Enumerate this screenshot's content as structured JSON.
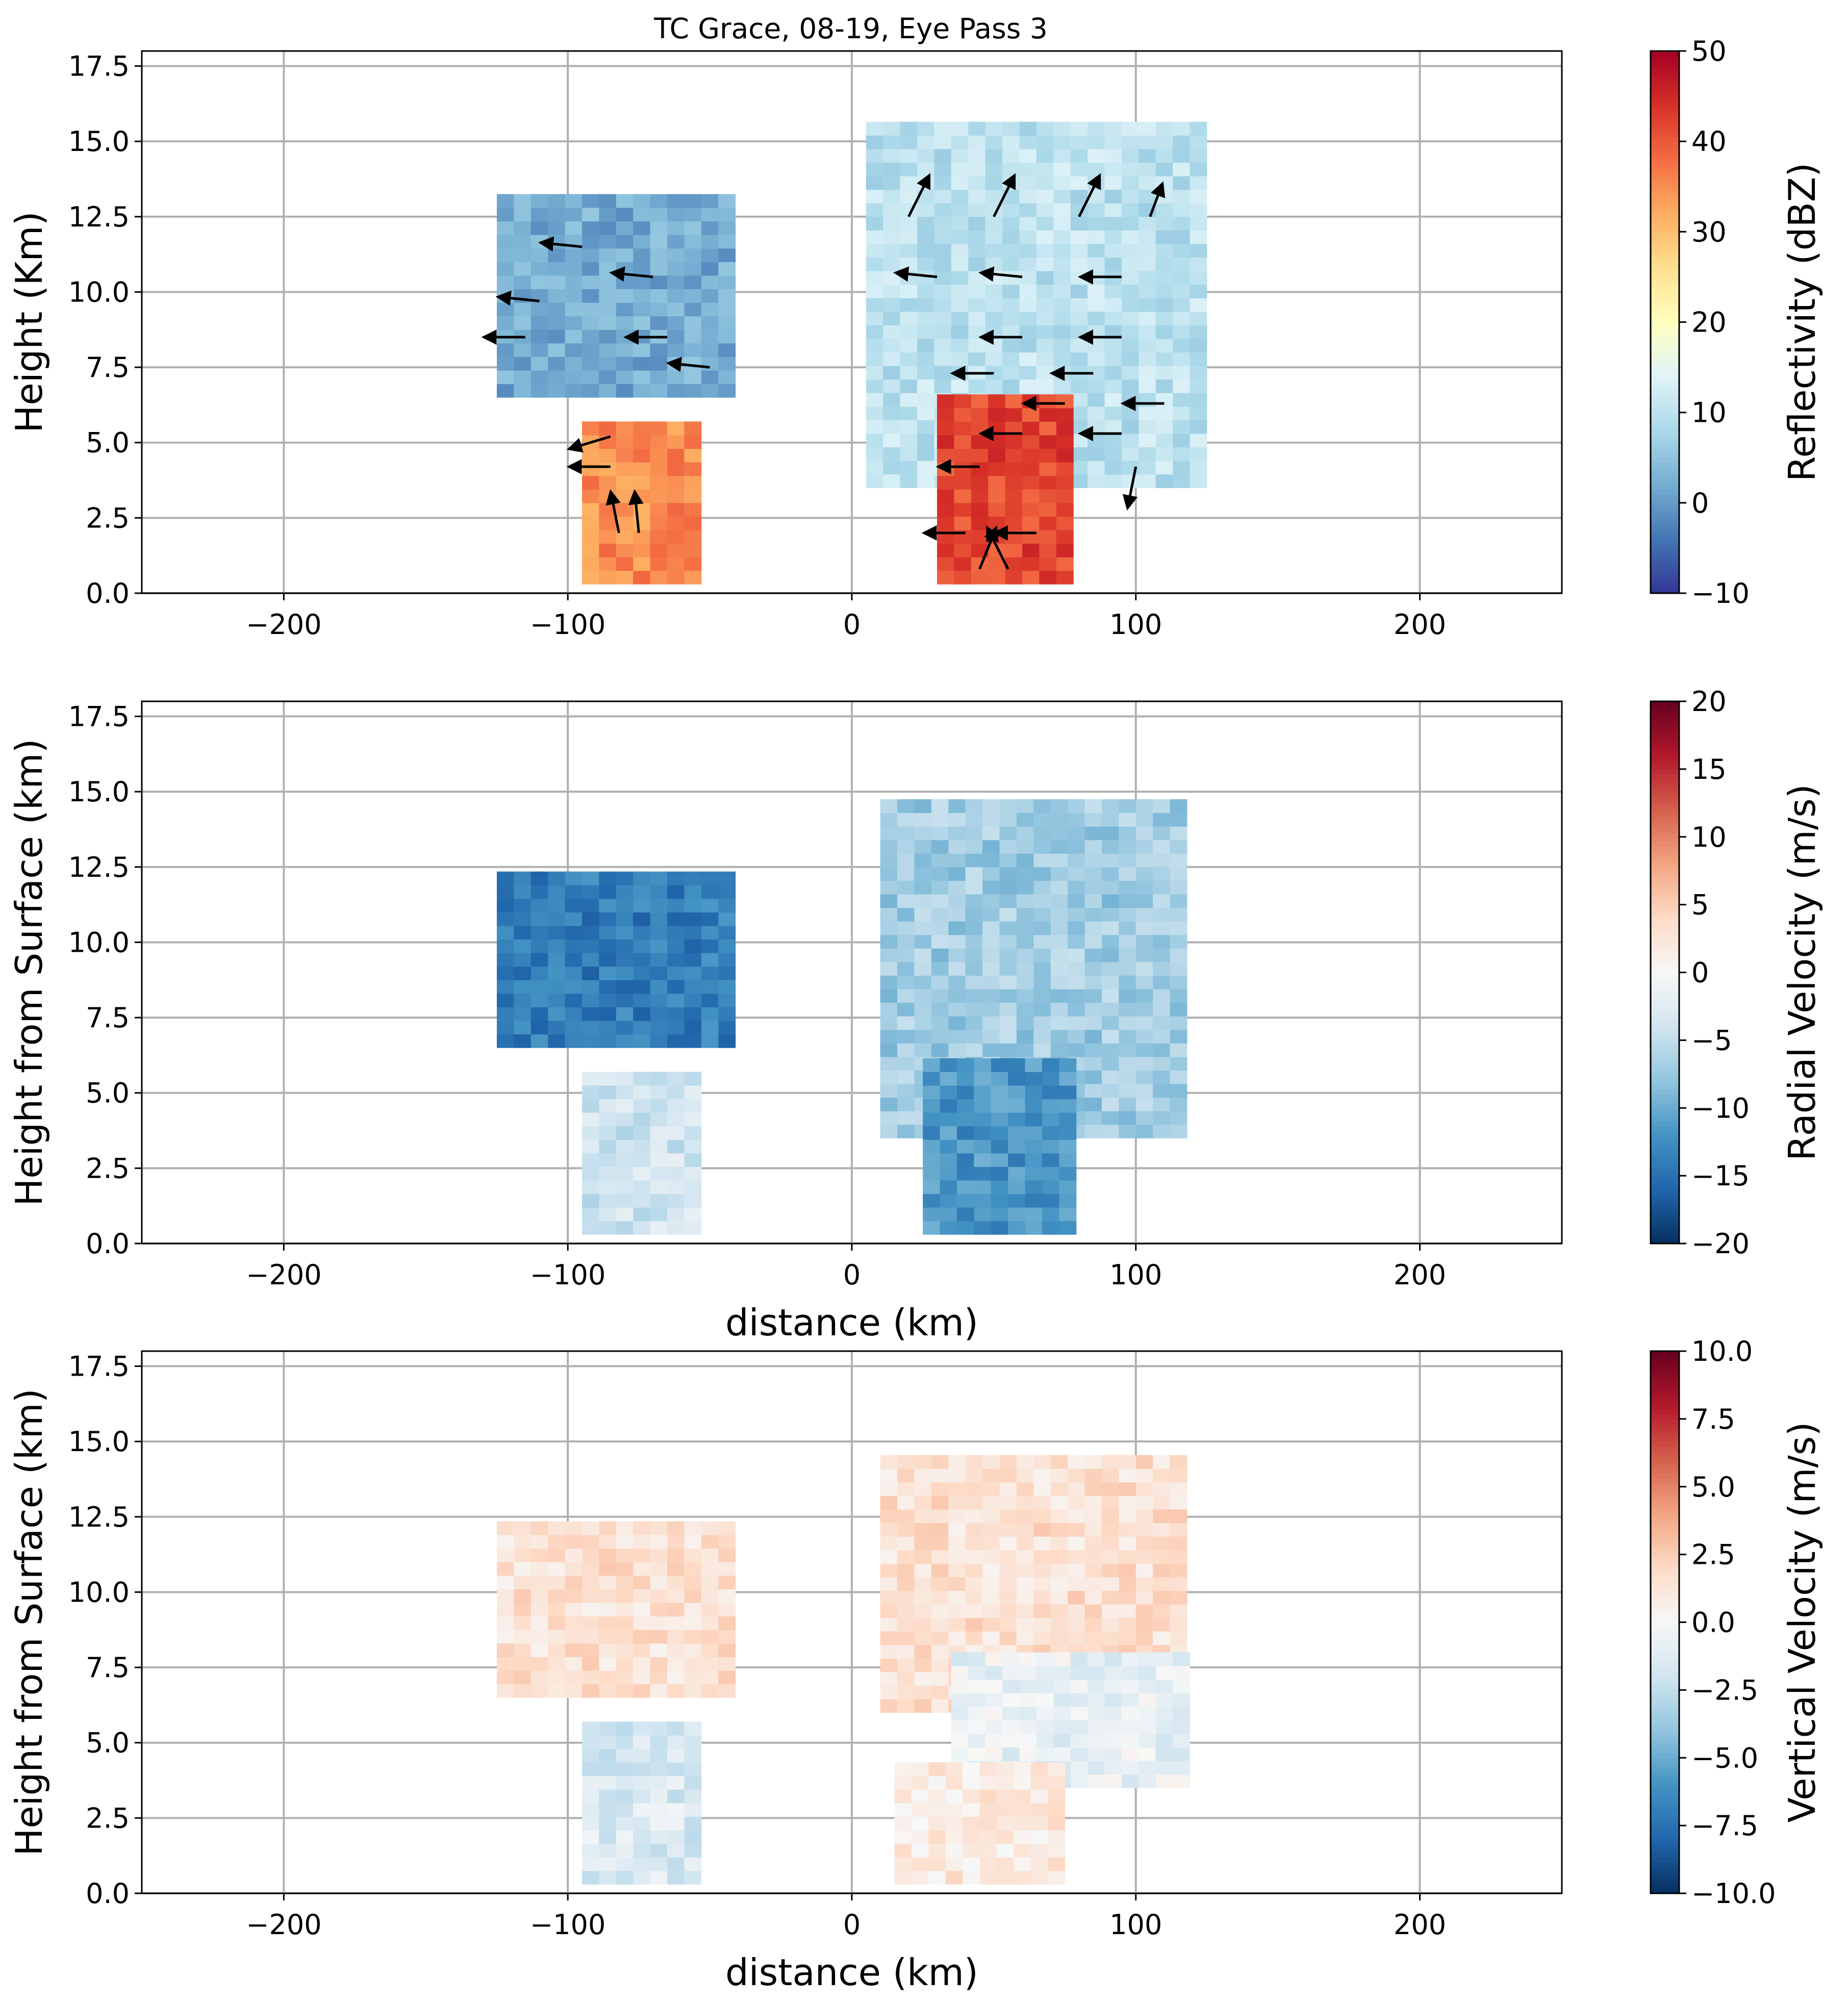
{
  "chart_data": [
    {
      "type": "heatmap",
      "title": "TC Grace, 08-19, Eye Pass 3",
      "xlabel": "",
      "ylabel": "Height (Km)",
      "xlim": [
        -250,
        250
      ],
      "ylim": [
        0,
        18
      ],
      "xticks": [
        -200,
        -100,
        0,
        100,
        200
      ],
      "xtick_labels": [
        "−200",
        "−100",
        "0",
        "100",
        "200"
      ],
      "yticks": [
        0,
        2.5,
        5,
        7.5,
        10,
        12.5,
        15,
        17.5
      ],
      "ytick_labels": [
        "0.0",
        "2.5",
        "5.0",
        "7.5",
        "10.0",
        "12.5",
        "15.0",
        "17.5"
      ],
      "grid": true,
      "colormap": "RdYlBu_r",
      "colorbar": {
        "label": "Reflectivity (dBZ)",
        "range": [
          -10,
          50
        ],
        "ticks": [
          -10,
          0,
          10,
          20,
          30,
          40,
          50
        ],
        "tick_labels": [
          "−10",
          "0",
          "10",
          "20",
          "30",
          "40",
          "50"
        ]
      },
      "features": [
        {
          "region": "left upper anvil",
          "x_range": [
            -125,
            -45
          ],
          "y_range": [
            6.5,
            13
          ],
          "value_dbz": 2
        },
        {
          "region": "left lower convection",
          "x_range": [
            -95,
            -55
          ],
          "y_range": [
            0.3,
            5.3
          ],
          "value_dbz": 35
        },
        {
          "region": "right eyewall anvil",
          "x_range": [
            5,
            120
          ],
          "y_range": [
            3.5,
            15.5
          ],
          "value_dbz": 10
        },
        {
          "region": "right eyewall core",
          "x_range": [
            30,
            75
          ],
          "y_range": [
            0.3,
            6.5
          ],
          "value_dbz": 42
        }
      ],
      "wind_vectors": [
        {
          "x": -95,
          "y": 11.5,
          "u": 1,
          "w": 0.1
        },
        {
          "x": -70,
          "y": 10.5,
          "u": 1,
          "w": 0.1
        },
        {
          "x": -110,
          "y": 9.7,
          "u": 1,
          "w": 0.1
        },
        {
          "x": -115,
          "y": 8.5,
          "u": 1,
          "w": 0
        },
        {
          "x": -65,
          "y": 8.5,
          "u": 1,
          "w": 0
        },
        {
          "x": -50,
          "y": 7.5,
          "u": 1,
          "w": 0.1
        },
        {
          "x": -85,
          "y": 5.2,
          "u": 1,
          "w": -0.3
        },
        {
          "x": -85,
          "y": 4.2,
          "u": 1,
          "w": 0
        },
        {
          "x": -82,
          "y": 2.0,
          "u": 0.2,
          "w": 1
        },
        {
          "x": -75,
          "y": 2.0,
          "u": 0.1,
          "w": 1
        },
        {
          "x": 20,
          "y": 12.5,
          "u": -0.5,
          "w": 1
        },
        {
          "x": 50,
          "y": 12.5,
          "u": -0.5,
          "w": 1
        },
        {
          "x": 80,
          "y": 12.5,
          "u": -0.5,
          "w": 1
        },
        {
          "x": 105,
          "y": 12.5,
          "u": -0.3,
          "w": 0.8
        },
        {
          "x": 30,
          "y": 10.5,
          "u": 1,
          "w": 0.1
        },
        {
          "x": 60,
          "y": 10.5,
          "u": 1,
          "w": 0.1
        },
        {
          "x": 95,
          "y": 10.5,
          "u": 1,
          "w": 0
        },
        {
          "x": 60,
          "y": 8.5,
          "u": 1,
          "w": 0
        },
        {
          "x": 95,
          "y": 8.5,
          "u": 1,
          "w": 0
        },
        {
          "x": 50,
          "y": 7.3,
          "u": 1,
          "w": 0
        },
        {
          "x": 85,
          "y": 7.3,
          "u": 1,
          "w": 0
        },
        {
          "x": 75,
          "y": 6.3,
          "u": 1,
          "w": 0
        },
        {
          "x": 110,
          "y": 6.3,
          "u": 1,
          "w": 0
        },
        {
          "x": 60,
          "y": 5.3,
          "u": 1,
          "w": 0
        },
        {
          "x": 95,
          "y": 5.3,
          "u": 1,
          "w": 0
        },
        {
          "x": 45,
          "y": 4.2,
          "u": 1,
          "w": 0
        },
        {
          "x": 100,
          "y": 4.2,
          "u": 0.2,
          "w": -1
        },
        {
          "x": 40,
          "y": 2.0,
          "u": 1,
          "w": 0
        },
        {
          "x": 65,
          "y": 2.0,
          "u": 1,
          "w": 0
        },
        {
          "x": 45,
          "y": 0.8,
          "u": -0.4,
          "w": 1
        },
        {
          "x": 55,
          "y": 0.8,
          "u": 0.5,
          "w": 1
        }
      ]
    },
    {
      "type": "heatmap",
      "title": "",
      "xlabel": "distance (km)",
      "ylabel": "Height from Surface (km)",
      "xlim": [
        -250,
        250
      ],
      "ylim": [
        0,
        18
      ],
      "xticks": [
        -200,
        -100,
        0,
        100,
        200
      ],
      "xtick_labels": [
        "−200",
        "−100",
        "0",
        "100",
        "200"
      ],
      "yticks": [
        0,
        2.5,
        5,
        7.5,
        10,
        12.5,
        15,
        17.5
      ],
      "ytick_labels": [
        "0.0",
        "2.5",
        "5.0",
        "7.5",
        "10.0",
        "12.5",
        "15.0",
        "17.5"
      ],
      "grid": true,
      "colormap": "RdBu_r",
      "colorbar": {
        "label": "Radial Velocity (m/s)",
        "range": [
          -20,
          20
        ],
        "ticks": [
          -20,
          -15,
          -10,
          -5,
          0,
          5,
          10,
          15,
          20
        ],
        "tick_labels": [
          "−20",
          "−15",
          "−10",
          "−5",
          "0",
          "5",
          "10",
          "15",
          "20"
        ]
      },
      "features": [
        {
          "region": "left upper anvil",
          "x_range": [
            -125,
            -45
          ],
          "y_range": [
            6.5,
            12.3
          ],
          "value_ms": -14
        },
        {
          "region": "left lower convection",
          "x_range": [
            -95,
            -55
          ],
          "y_range": [
            0.3,
            5.3
          ],
          "value_ms": -4
        },
        {
          "region": "right eyewall anvil",
          "x_range": [
            10,
            118
          ],
          "y_range": [
            3.5,
            14.3
          ],
          "value_ms": -7
        },
        {
          "region": "right eyewall core",
          "x_range": [
            25,
            75
          ],
          "y_range": [
            0.3,
            6
          ],
          "value_ms": -12
        }
      ]
    },
    {
      "type": "heatmap",
      "title": "",
      "xlabel": "distance (km)",
      "ylabel": "Height from Surface (km)",
      "xlim": [
        -250,
        250
      ],
      "ylim": [
        0,
        18
      ],
      "xticks": [
        -200,
        -100,
        0,
        100,
        200
      ],
      "xtick_labels": [
        "−200",
        "−100",
        "0",
        "100",
        "200"
      ],
      "yticks": [
        0,
        2.5,
        5,
        7.5,
        10,
        12.5,
        15,
        17.5
      ],
      "ytick_labels": [
        "0.0",
        "2.5",
        "5.0",
        "7.5",
        "10.0",
        "12.5",
        "15.0",
        "17.5"
      ],
      "grid": true,
      "colormap": "RdBu_r",
      "colorbar": {
        "label": "Vertical Velocity (m/s)",
        "range": [
          -10,
          10
        ],
        "ticks": [
          -10,
          -7.5,
          -5,
          -2.5,
          0,
          2.5,
          5,
          7.5,
          10
        ],
        "tick_labels": [
          "−10.0",
          "−7.5",
          "−5.0",
          "−2.5",
          "0.0",
          "2.5",
          "5.0",
          "7.5",
          "10.0"
        ]
      },
      "features": [
        {
          "region": "left upper anvil",
          "x_range": [
            -125,
            -45
          ],
          "y_range": [
            6.5,
            12.3
          ],
          "value_ms": 1.5
        },
        {
          "region": "left lower convection",
          "x_range": [
            -95,
            -55
          ],
          "y_range": [
            0.3,
            5.3
          ],
          "value_ms": -1.5
        },
        {
          "region": "right eyewall anvil",
          "x_range": [
            10,
            118
          ],
          "y_range": [
            6,
            14.3
          ],
          "value_ms": 1.5
        },
        {
          "region": "right eyewall mid",
          "x_range": [
            35,
            118
          ],
          "y_range": [
            3.5,
            8
          ],
          "value_ms": -0.8
        },
        {
          "region": "right eyewall core",
          "x_range": [
            15,
            75
          ],
          "y_range": [
            0.3,
            4
          ],
          "value_ms": 1
        }
      ]
    }
  ]
}
